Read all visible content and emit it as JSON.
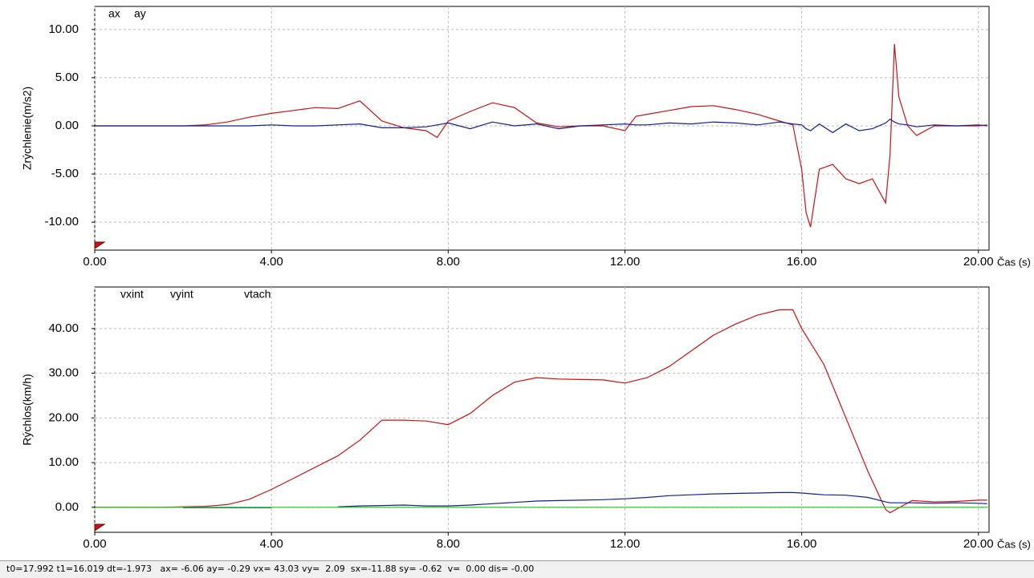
{
  "chart_data": [
    {
      "type": "line",
      "ylabel": "Zrýchlenie(m/s2)",
      "xlabel": "Čas (s)",
      "grid": true,
      "xlim": [
        0,
        20.24
      ],
      "ylim": [
        -12.9,
        12.4
      ],
      "xticks": [
        {
          "value": 0,
          "label": "0.00"
        },
        {
          "value": 4,
          "label": "4.00"
        },
        {
          "value": 8,
          "label": "8.00"
        },
        {
          "value": 12,
          "label": "12.00"
        },
        {
          "value": 16,
          "label": "16.00"
        },
        {
          "value": 20,
          "label": "20.00"
        }
      ],
      "yticks": [
        {
          "value": -10,
          "label": "-10.00"
        },
        {
          "value": -5,
          "label": "-5.00"
        },
        {
          "value": 0,
          "label": "0.00"
        },
        {
          "value": 5,
          "label": "5.00"
        },
        {
          "value": 10,
          "label": "10.00"
        }
      ],
      "x": [
        0,
        0.5,
        1,
        1.5,
        2,
        2.5,
        3,
        3.5,
        4,
        4.5,
        5,
        5.5,
        6,
        6.5,
        7,
        7.5,
        7.75,
        8,
        8.5,
        9,
        9.5,
        10,
        10.5,
        11,
        11.5,
        12,
        12.25,
        12.5,
        13,
        13.5,
        14,
        14.5,
        15,
        15.5,
        15.8,
        16,
        16.1,
        16.2,
        16.4,
        16.7,
        17,
        17.3,
        17.6,
        17.9,
        18,
        18.1,
        18.2,
        18.4,
        18.6,
        19,
        19.5,
        20,
        20.2
      ],
      "series": [
        {
          "name": "ax",
          "color": "#cc1010",
          "values": [
            0,
            0,
            0,
            0,
            0,
            0.1,
            0.4,
            0.9,
            1.3,
            1.6,
            1.9,
            1.8,
            2.6,
            0.5,
            -0.2,
            -0.5,
            -1.2,
            0.5,
            1.5,
            2.4,
            1.9,
            0.3,
            -0.1,
            0,
            0,
            -0.5,
            1,
            1.2,
            1.6,
            2,
            2.1,
            1.7,
            1.2,
            0.5,
            0.1,
            -4.5,
            -9,
            -10.5,
            -4.5,
            -4,
            -5.5,
            -6,
            -5.5,
            -8,
            -3,
            8.5,
            3,
            0,
            -1,
            0,
            0,
            0,
            0.1
          ]
        },
        {
          "name": "ay",
          "color": "#102090",
          "values": [
            0,
            0,
            0,
            0,
            0,
            0,
            0,
            0,
            0.1,
            0,
            0,
            0.1,
            0.2,
            -0.2,
            -0.2,
            -0.1,
            0.1,
            0.3,
            -0.3,
            0.4,
            0,
            0.2,
            -0.3,
            0,
            0.1,
            0.2,
            0.1,
            0.1,
            0.3,
            0.2,
            0.4,
            0.3,
            0.1,
            0.4,
            0.2,
            0.1,
            -0.3,
            -0.5,
            0.2,
            -0.7,
            0.2,
            -0.5,
            -0.3,
            0.3,
            0.7,
            0.4,
            0.2,
            0.1,
            -0.1,
            0.1,
            0,
            0.1,
            0
          ]
        }
      ]
    },
    {
      "type": "line",
      "ylabel": "Rýchlos(km/h)",
      "xlabel": "Čas (s)",
      "grid": true,
      "xlim": [
        0,
        20.24
      ],
      "ylim": [
        -5.6,
        49.3
      ],
      "xticks": [
        {
          "value": 0,
          "label": "0.00"
        },
        {
          "value": 4,
          "label": "4.00"
        },
        {
          "value": 8,
          "label": "8.00"
        },
        {
          "value": 12,
          "label": "12.00"
        },
        {
          "value": 16,
          "label": "16.00"
        },
        {
          "value": 20,
          "label": "20.00"
        }
      ],
      "yticks": [
        {
          "value": 0,
          "label": "0.00"
        },
        {
          "value": 10,
          "label": "10.00"
        },
        {
          "value": 20,
          "label": "20.00"
        },
        {
          "value": 30,
          "label": "30.00"
        },
        {
          "value": 40,
          "label": "40.00"
        }
      ],
      "x": [
        0,
        0.5,
        1,
        1.5,
        2,
        2.5,
        3,
        3.5,
        4,
        4.5,
        5,
        5.5,
        6,
        6.5,
        7,
        7.5,
        8,
        8.5,
        9,
        9.5,
        10,
        10.5,
        11,
        11.5,
        12,
        12.5,
        13,
        13.5,
        14,
        14.5,
        15,
        15.5,
        15.8,
        16,
        16.5,
        17,
        17.5,
        17.9,
        18,
        18.5,
        19,
        19.5,
        20,
        20.2
      ],
      "series": [
        {
          "name": "vxint",
          "color": "#cc1010",
          "values": [
            0,
            0,
            0,
            0,
            0.1,
            0.2,
            0.6,
            1.8,
            4,
            6.5,
            9,
            11.5,
            15,
            19.5,
            19.5,
            19.3,
            18.5,
            21,
            25,
            28,
            29,
            28.7,
            28.6,
            28.5,
            27.8,
            29,
            31.5,
            35,
            38.5,
            41,
            43,
            44.2,
            44.2,
            40,
            32,
            20,
            8,
            -0.5,
            -1.2,
            1.5,
            1.2,
            1.3,
            1.6,
            1.6
          ]
        },
        {
          "name": "vyint",
          "color": "#102090",
          "values": [
            null,
            null,
            null,
            null,
            -0.1,
            -0.1,
            -0.1,
            -0.1,
            -0.1,
            null,
            null,
            0.1,
            0.3,
            0.4,
            0.5,
            0.3,
            0.3,
            0.5,
            0.8,
            1.1,
            1.4,
            1.5,
            1.6,
            1.7,
            1.9,
            2.2,
            2.6,
            2.8,
            3,
            3.1,
            3.2,
            3.3,
            3.3,
            3.2,
            2.8,
            2.7,
            2.2,
            1.2,
            1,
            1,
            0.9,
            1,
            0.9,
            0.8
          ]
        },
        {
          "name": "vtach",
          "color": "#20c020",
          "values": [
            0,
            0,
            0,
            0,
            0,
            0,
            0,
            0,
            0,
            0,
            0,
            0,
            0,
            0,
            0,
            0,
            0,
            0,
            0,
            0,
            0,
            0,
            0,
            0,
            0,
            0,
            0,
            0,
            0,
            0,
            0,
            0,
            0,
            0,
            0,
            0,
            0,
            0,
            0,
            0,
            0,
            0,
            0,
            0
          ]
        }
      ]
    }
  ],
  "status_bar": "t0=17.992 t1=16.019 dt=-1.973   ax= -6.06 ay= -0.29 vx= 43.03 vy=  2.09  sx=-11.88 sy= -0.62  v=  0.00 dis= -0.00"
}
